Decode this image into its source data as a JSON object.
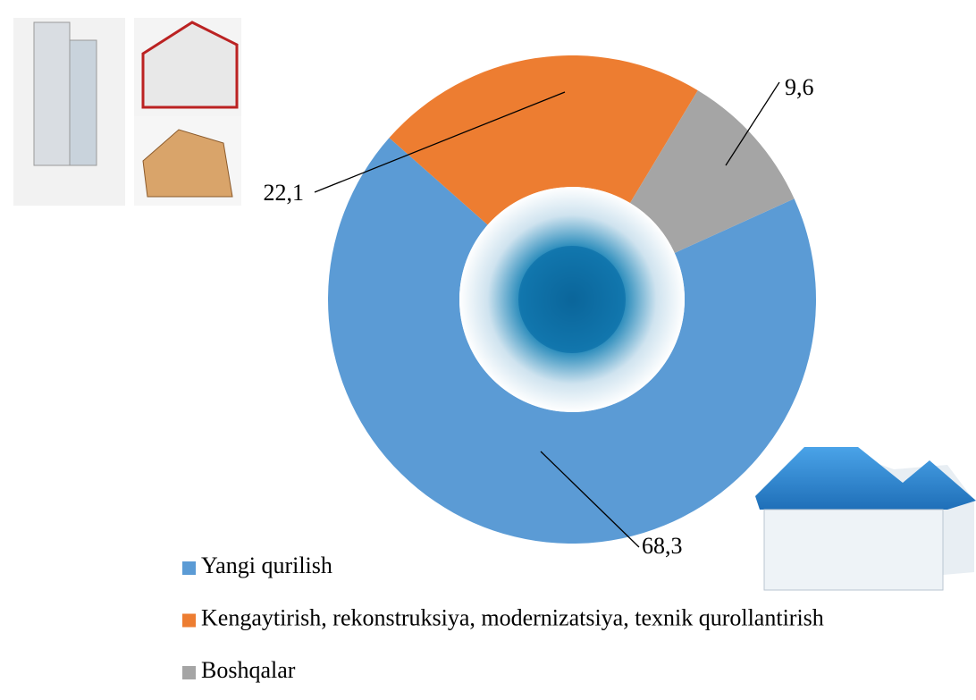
{
  "chart_data": {
    "type": "donut",
    "categories": [
      "Yangi qurilish",
      "Kengaytirish, rekonstruksiya, modernizatsiya, texnik qurollantirish",
      "Boshqalar"
    ],
    "values": [
      68.3,
      22.1,
      9.6
    ],
    "value_labels": [
      "68,3",
      "22,1",
      "9,6"
    ],
    "colors": [
      "#5b9bd5",
      "#ed7d31",
      "#a5a5a5"
    ],
    "legend": "bottom-left"
  }
}
